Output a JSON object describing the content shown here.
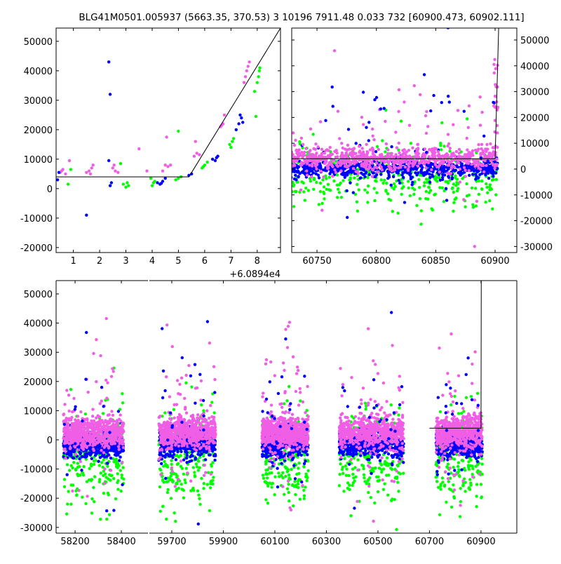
{
  "title": "BLG41M0501.005937 (5663.35, 370.53)   3 10196 7911.48 0.033 732 [60900.473, 60902.111]",
  "colors": {
    "blue": "#0000ff",
    "green": "#00ff00",
    "magenta": "#f05ee6",
    "line": "#000000"
  },
  "chart_data": [
    {
      "type": "scatter",
      "name": "zoom-panel",
      "xlim": [
        0.343,
        8.886
      ],
      "ylim": [
        -21700,
        54500
      ],
      "x_offset_label": "+6.0894e4",
      "xticks": [
        1,
        2,
        3,
        4,
        5,
        6,
        7,
        8
      ],
      "yticks": [
        -20000,
        -10000,
        0,
        10000,
        20000,
        30000,
        40000,
        50000
      ],
      "ytick_side": "left",
      "model_line": [
        [
          0.343,
          4000
        ],
        [
          5.4,
          4000
        ],
        [
          8.886,
          54500
        ]
      ],
      "series": [
        {
          "name": "magenta",
          "points": [
            [
              0.5,
              5500
            ],
            [
              0.6,
              6500
            ],
            [
              0.7,
              5000
            ],
            [
              0.55,
              6000
            ],
            [
              0.85,
              9500
            ],
            [
              1.5,
              5500
            ],
            [
              1.6,
              6000
            ],
            [
              1.7,
              7000
            ],
            [
              1.65,
              5000
            ],
            [
              1.75,
              8000
            ],
            [
              2.5,
              7000
            ],
            [
              2.6,
              6000
            ],
            [
              2.7,
              5500
            ],
            [
              2.55,
              8000
            ],
            [
              3.5,
              13500
            ],
            [
              4.5,
              8000
            ],
            [
              4.6,
              7500
            ],
            [
              4.7,
              8000
            ],
            [
              4.55,
              17500
            ],
            [
              3.8,
              6000
            ],
            [
              4.4,
              6000
            ],
            [
              5.6,
              11000
            ],
            [
              5.7,
              12000
            ],
            [
              5.8,
              11500
            ],
            [
              5.65,
              16000
            ],
            [
              6.6,
              21000
            ],
            [
              6.7,
              22000
            ],
            [
              6.75,
              25000
            ],
            [
              6.65,
              21500
            ],
            [
              7.5,
              36000
            ],
            [
              7.6,
              40000
            ],
            [
              7.7,
              43000
            ],
            [
              7.55,
              38000
            ],
            [
              7.65,
              41500
            ]
          ]
        },
        {
          "name": "blue",
          "points": [
            [
              0.4,
              3000
            ],
            [
              0.45,
              5500
            ],
            [
              1.5,
              -9000
            ],
            [
              2.35,
              43000
            ],
            [
              2.4,
              32000
            ],
            [
              2.4,
              1000
            ],
            [
              2.45,
              2000
            ],
            [
              2.35,
              9500
            ],
            [
              4.3,
              1500
            ],
            [
              4.4,
              2500
            ],
            [
              4.5,
              3500
            ],
            [
              4.2,
              2000
            ],
            [
              4.35,
              1800
            ],
            [
              5.4,
              4500
            ],
            [
              5.5,
              5000
            ],
            [
              6.4,
              9500
            ],
            [
              6.5,
              11000
            ],
            [
              6.3,
              10000
            ],
            [
              6.45,
              10500
            ],
            [
              7.3,
              22000
            ],
            [
              7.35,
              25000
            ],
            [
              7.4,
              24000
            ],
            [
              7.2,
              20000
            ],
            [
              7.45,
              22500
            ]
          ]
        },
        {
          "name": "green",
          "points": [
            [
              0.8,
              1500
            ],
            [
              0.9,
              6500
            ],
            [
              2.8,
              8500
            ],
            [
              2.9,
              1500
            ],
            [
              3.0,
              500
            ],
            [
              3.1,
              1000
            ],
            [
              3.05,
              2000
            ],
            [
              4.0,
              1000
            ],
            [
              4.1,
              2500
            ],
            [
              3.95,
              3500
            ],
            [
              4.05,
              2000
            ],
            [
              5.0,
              19500
            ],
            [
              4.9,
              3000
            ],
            [
              5.1,
              4000
            ],
            [
              5.0,
              3500
            ],
            [
              5.9,
              7000
            ],
            [
              6.0,
              8000
            ],
            [
              6.1,
              9000
            ],
            [
              5.95,
              7500
            ],
            [
              7.0,
              14000
            ],
            [
              7.1,
              17000
            ],
            [
              7.05,
              16000
            ],
            [
              6.95,
              15000
            ],
            [
              7.9,
              33000
            ],
            [
              8.0,
              36000
            ],
            [
              8.1,
              41000
            ],
            [
              7.95,
              24500
            ],
            [
              8.05,
              38000
            ],
            [
              8.08,
              40000
            ]
          ]
        }
      ]
    },
    {
      "type": "scatter",
      "name": "recent-panel",
      "xlim": [
        60728.7,
        60918.3
      ],
      "ylim": [
        -32340,
        54620
      ],
      "xticks": [
        60750,
        60800,
        60850,
        60900
      ],
      "yticks": [
        -30000,
        -20000,
        -10000,
        0,
        10000,
        20000,
        30000,
        40000,
        50000
      ],
      "ytick_side": "right",
      "model_line": [
        [
          60728.7,
          4000
        ],
        [
          60900,
          4000
        ],
        [
          60903,
          54620
        ]
      ],
      "clusters": [
        {
          "series": "green",
          "x": [
            60728,
            60902
          ],
          "mean": -3000,
          "sd": 5500,
          "n": 380
        },
        {
          "series": "blue",
          "x": [
            60728,
            60902
          ],
          "mean": 0,
          "sd": 1800,
          "n": 650
        },
        {
          "series": "magenta",
          "x": [
            60728,
            60902
          ],
          "mean": 4000,
          "sd": 2200,
          "n": 750
        },
        {
          "series": "magenta",
          "x": [
            60728,
            60902
          ],
          "mean": 15000,
          "sd": 12000,
          "n": 45
        },
        {
          "series": "blue",
          "x": [
            60760,
            60900
          ],
          "mean": 20000,
          "sd": 10000,
          "n": 25
        },
        {
          "series": "magenta",
          "x": [
            60899,
            60903
          ],
          "mean": 25000,
          "sd": 12000,
          "n": 25
        }
      ]
    },
    {
      "type": "scatter",
      "name": "full-lightcurve",
      "ylim": [
        -31970,
        54570
      ],
      "broken_x_axis": [
        {
          "xlim": [
            58118,
            58515
          ],
          "xticks": [
            58200,
            58400
          ]
        },
        {
          "xlim": [
            59613,
            61039
          ],
          "xticks": [
            59700,
            59900,
            60100,
            60300,
            60500,
            60700,
            60900
          ]
        }
      ],
      "yticks": [
        -30000,
        -20000,
        -10000,
        0,
        10000,
        20000,
        30000,
        40000,
        50000
      ],
      "ytick_side": "left",
      "model_line": [
        [
          60700,
          4000
        ],
        [
          60900,
          4000
        ],
        [
          60901,
          54570
        ]
      ],
      "seasons": [
        [
          58150,
          58410
        ],
        [
          59650,
          59870
        ],
        [
          60050,
          60230
        ],
        [
          60350,
          60600
        ],
        [
          60725,
          60905
        ]
      ],
      "clusters_per_season": [
        {
          "series": "green",
          "mean": -6000,
          "sd": 8000,
          "n": 220
        },
        {
          "series": "blue",
          "mean": -1500,
          "sd": 2200,
          "n": 450
        },
        {
          "series": "magenta",
          "mean": 2500,
          "sd": 2600,
          "n": 600
        },
        {
          "series": "magenta",
          "mean": 8000,
          "sd": 13000,
          "n": 60
        },
        {
          "series": "blue",
          "mean": 5000,
          "sd": 14000,
          "n": 25
        }
      ]
    }
  ]
}
